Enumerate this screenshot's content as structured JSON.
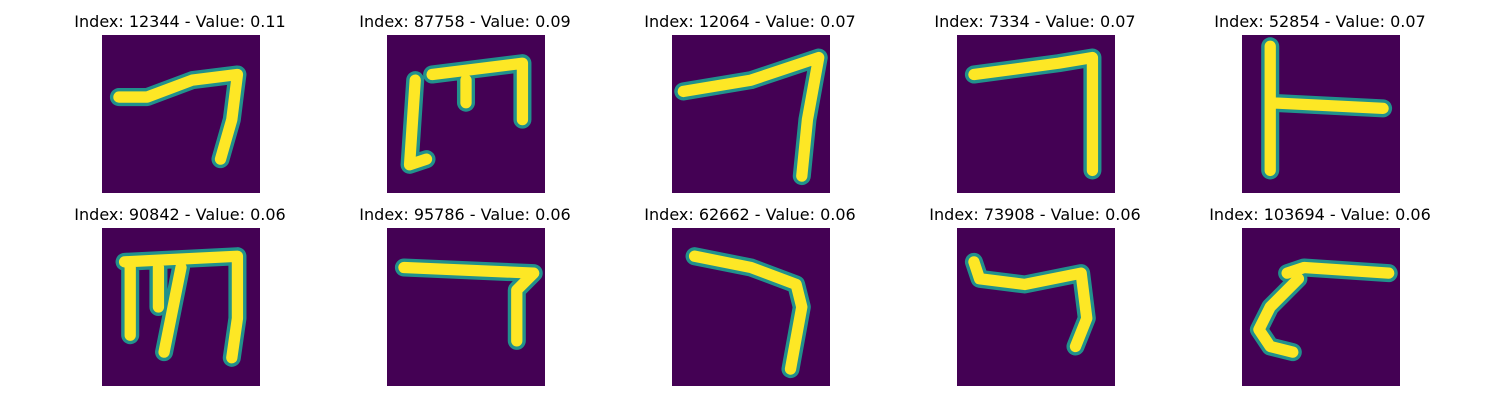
{
  "colors": {
    "background": "#440154",
    "stroke": "#fde725",
    "edge": "#21918c"
  },
  "panels": [
    {
      "index": "12344",
      "value": "0.11",
      "title": "Index: 12344 - Value: 0.11"
    },
    {
      "index": "87758",
      "value": "0.09",
      "title": "Index: 87758 - Value: 0.09"
    },
    {
      "index": "12064",
      "value": "0.07",
      "title": "Index: 12064 - Value: 0.07"
    },
    {
      "index": "7334",
      "value": "0.07",
      "title": "Index: 7334 - Value: 0.07"
    },
    {
      "index": "52854",
      "value": "0.07",
      "title": "Index: 52854 - Value: 0.07"
    },
    {
      "index": "90842",
      "value": "0.06",
      "title": "Index: 90842 - Value: 0.06"
    },
    {
      "index": "95786",
      "value": "0.06",
      "title": "Index: 95786 - Value: 0.06"
    },
    {
      "index": "62662",
      "value": "0.06",
      "title": "Index: 62662 - Value: 0.06"
    },
    {
      "index": "73908",
      "value": "0.06",
      "title": "Index: 73908 - Value: 0.06"
    },
    {
      "index": "103694",
      "value": "0.06",
      "title": "Index: 103694 - Value: 0.06"
    }
  ]
}
